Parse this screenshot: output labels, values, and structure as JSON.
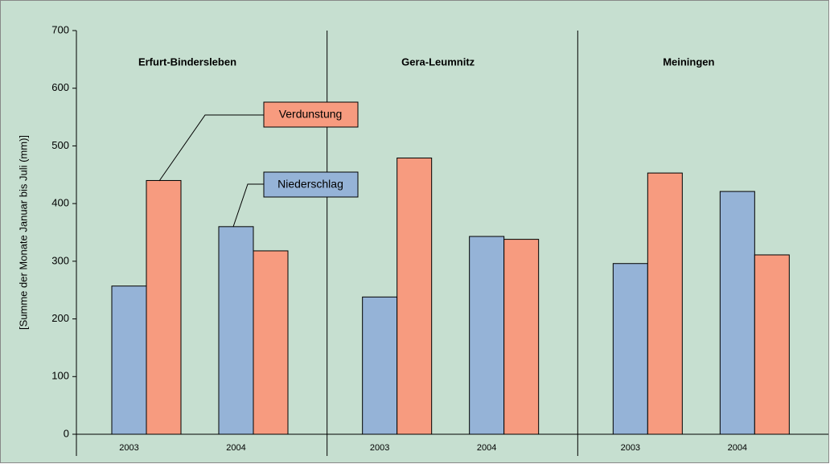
{
  "chart_data": {
    "type": "bar",
    "y_axis_label": "[Summe der Monate Januar bis Juli (mm)]",
    "groups": [
      "Erfurt-Bindersleben",
      "Gera-Leumnitz",
      "Meiningen"
    ],
    "categories": [
      "2003",
      "2004",
      "2003",
      "2004",
      "2003",
      "2004"
    ],
    "series": [
      {
        "name": "Niederschlag",
        "color": "#95b3d7",
        "values": [
          257,
          360,
          238,
          343,
          296,
          421
        ]
      },
      {
        "name": "Verdunstung",
        "color": "#f79b7f",
        "values": [
          440,
          318,
          479,
          338,
          453,
          311
        ]
      }
    ],
    "ylim": [
      0,
      700
    ],
    "yticks": [
      0,
      100,
      200,
      300,
      400,
      500,
      600,
      700
    ]
  }
}
